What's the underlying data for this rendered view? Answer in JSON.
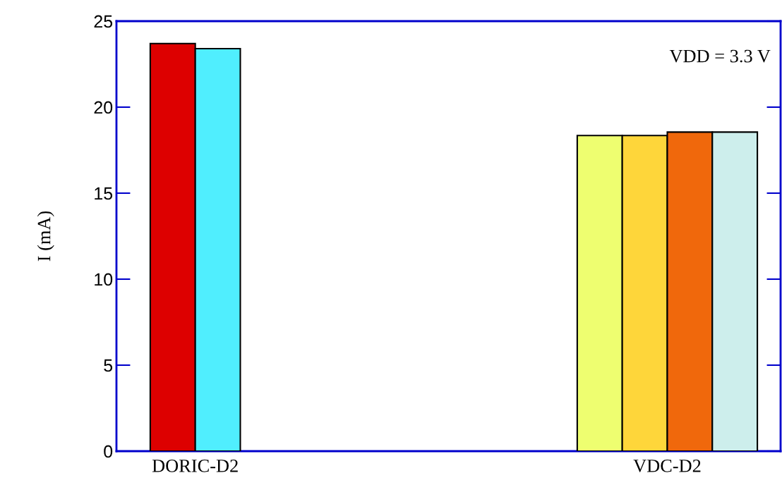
{
  "chart_data": {
    "type": "bar",
    "ylabel": "I (mA)",
    "categories": [
      "DORIC-D2",
      "VDC-D2"
    ],
    "series": [
      {
        "color": "#dd0000",
        "values": [
          23.7,
          null
        ]
      },
      {
        "color": "#50eefe",
        "values": [
          23.4,
          null
        ]
      },
      {
        "color": "#eefe70",
        "values": [
          null,
          18.35
        ]
      },
      {
        "color": "#fed63a",
        "values": [
          null,
          18.35
        ]
      },
      {
        "color": "#f0680c",
        "values": [
          null,
          18.55
        ]
      },
      {
        "color": "#cdeeec",
        "values": [
          null,
          18.55
        ]
      }
    ],
    "ylim": [
      0,
      25
    ],
    "yticks": [
      0,
      5,
      10,
      15,
      20,
      25
    ],
    "annotations": [
      "VDD = 3.3 V"
    ],
    "grid": false,
    "legend": false
  }
}
